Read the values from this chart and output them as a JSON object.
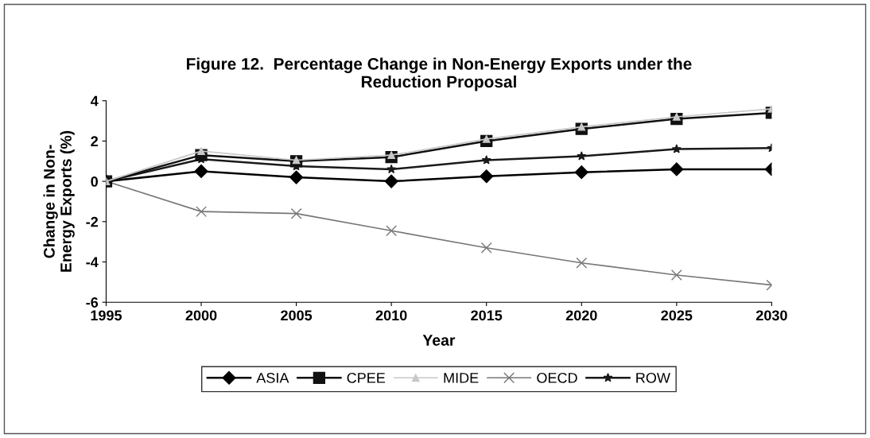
{
  "chart_data": {
    "type": "line",
    "title": "Figure 12.  Percentage Change in Non-Energy Exports under the\nReduction Proposal",
    "xlabel": "Year",
    "ylabel": "Change in Non-\nEnergy Exports (%)",
    "categories": [
      "1995",
      "2000",
      "2005",
      "2010",
      "2015",
      "2020",
      "2025",
      "2030"
    ],
    "series": [
      {
        "name": "ASIA",
        "color": "#000000",
        "marker": "diamond",
        "values": [
          0,
          0.5,
          0.2,
          0.0,
          0.25,
          0.45,
          0.6,
          0.6
        ]
      },
      {
        "name": "CPEE",
        "color": "#111111",
        "marker": "square",
        "values": [
          0,
          1.3,
          1.0,
          1.2,
          2.0,
          2.6,
          3.1,
          3.4
        ]
      },
      {
        "name": "MIDE",
        "color": "#c8c8c8",
        "marker": "triangle",
        "values": [
          0,
          1.5,
          1.05,
          1.3,
          2.1,
          2.7,
          3.2,
          3.6
        ]
      },
      {
        "name": "OECD",
        "color": "#777777",
        "marker": "cross",
        "values": [
          0,
          -1.5,
          -1.6,
          -2.45,
          -3.3,
          -4.05,
          -4.65,
          -5.15
        ]
      },
      {
        "name": "ROW",
        "color": "#1a1a1a",
        "marker": "star",
        "values": [
          0,
          1.1,
          0.75,
          0.6,
          1.05,
          1.25,
          1.6,
          1.65
        ]
      }
    ],
    "ylim": [
      -6,
      4
    ],
    "yticks": [
      -6,
      -4,
      -2,
      0,
      2,
      4
    ],
    "grid": false,
    "legend": "bottom",
    "line_style": "solid"
  }
}
